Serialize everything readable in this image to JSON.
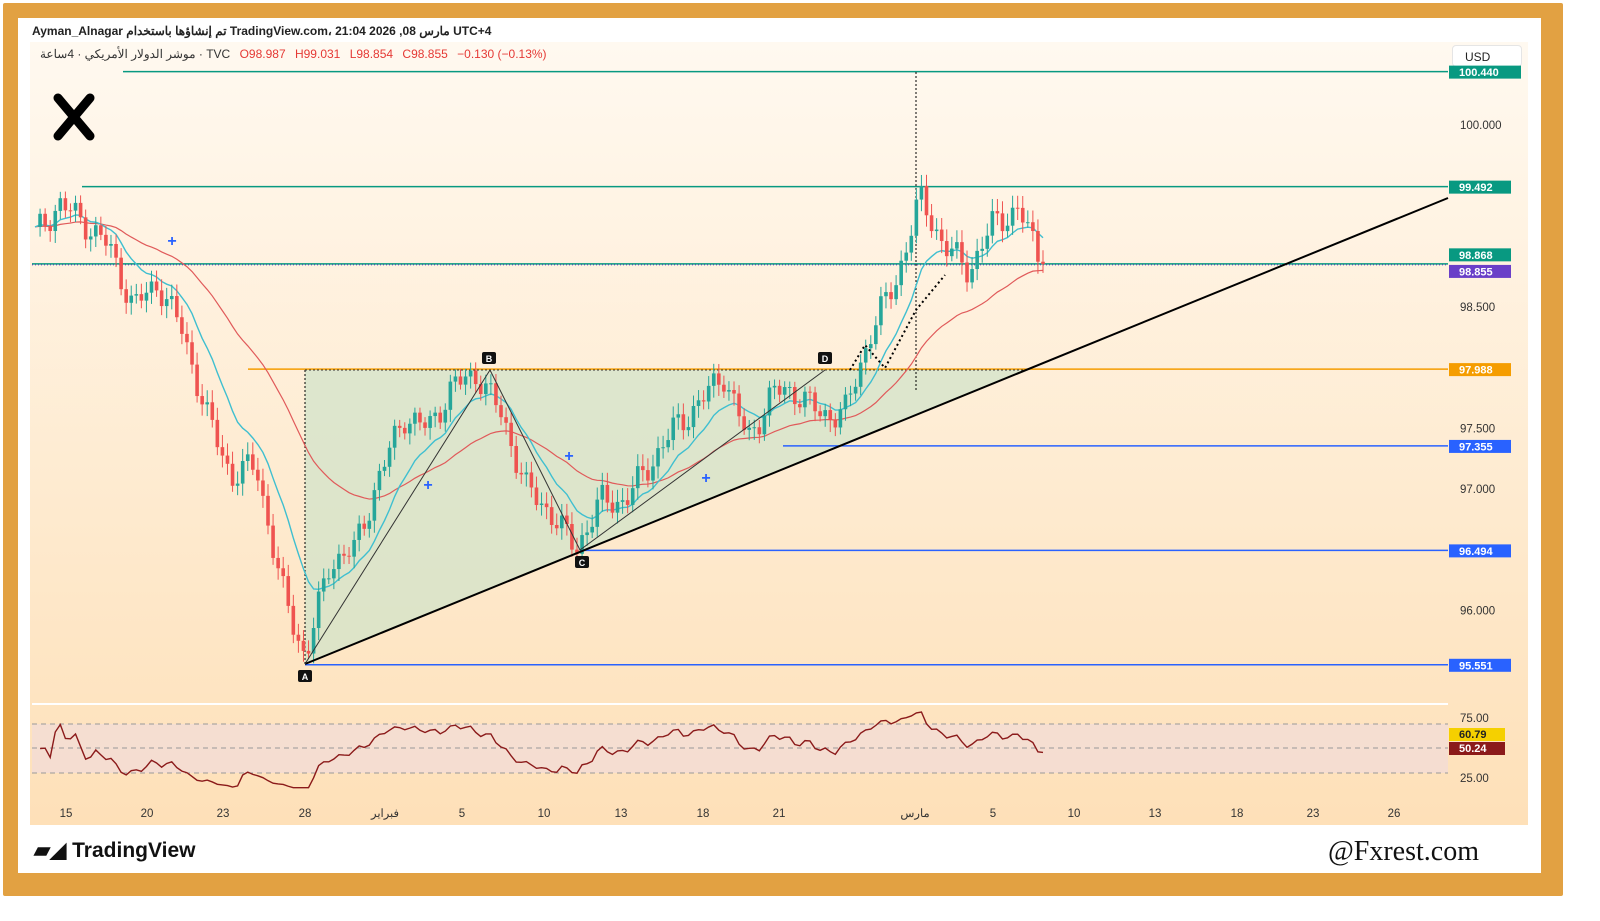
{
  "header": {
    "line1": "Ayman_Alnagar تم إنشاؤها باستخدام TradingView.com، 21:04 2026 ,08 مارس UTC+4",
    "symbol": "موشر الدولار الأمريكي · 4ساعة · TVC",
    "open": "O98.987",
    "high": "H99.031",
    "low": "L98.854",
    "close": "C98.855",
    "change": "−0.130 (−0.13%)"
  },
  "currency": "USD",
  "brand": {
    "logo_text": "TradingView",
    "watermark": "@Fxrest.com"
  },
  "colors": {
    "frame": "#e2a142",
    "up": "#26a69a",
    "down": "#ef5350",
    "ema": "#3fbfd0",
    "ma": "#e05a5a",
    "trend": "#000000",
    "teal": "#089981",
    "blue": "#2962ff",
    "orange": "#f59d00",
    "rsi": "#8b1a1a"
  },
  "chart_data": {
    "type": "candlestick",
    "title": "",
    "date_range": [
      "2026-01-14",
      "2026-03-06"
    ],
    "approx_closes": [
      99.1,
      99.35,
      99.2,
      99.0,
      98.5,
      98.7,
      98.3,
      97.6,
      97.1,
      97.2,
      96.2,
      95.6,
      96.4,
      96.5,
      97.1,
      97.6,
      97.5,
      97.85,
      97.95,
      97.6,
      97.0,
      96.8,
      96.5,
      96.9,
      96.9,
      97.2,
      97.5,
      97.7,
      97.95,
      97.4,
      97.8,
      97.8,
      97.6,
      97.65,
      98.3,
      98.7,
      99.4,
      99.0,
      98.8,
      99.2,
      99.3,
      98.855
    ],
    "y_ticks": [
      "100.000",
      "98.500",
      "97.500",
      "97.000",
      "96.000"
    ],
    "x_ticks": [
      "15",
      "20",
      "23",
      "28",
      "فبراير",
      "5",
      "10",
      "13",
      "18",
      "21",
      "مارس",
      "5",
      "10",
      "13",
      "18",
      "23",
      "26"
    ],
    "levels": [
      {
        "label": "100.440",
        "value": 100.44,
        "color": "#089981"
      },
      {
        "label": "99.492",
        "value": 99.492,
        "color": "#089981"
      },
      {
        "label": "98.868",
        "value": 98.868,
        "color": "#089981"
      },
      {
        "label": "98.855",
        "value": 98.855,
        "color": "#6a3fc8"
      },
      {
        "label": "97.988",
        "value": 97.988,
        "color": "#f59d00"
      },
      {
        "label": "97.355",
        "value": 97.355,
        "color": "#2962ff"
      },
      {
        "label": "96.494",
        "value": 96.494,
        "color": "#2962ff"
      },
      {
        "label": "95.551",
        "value": 95.551,
        "color": "#2962ff"
      }
    ],
    "pattern_points": [
      {
        "label": "A",
        "value": 95.551
      },
      {
        "label": "B",
        "value": 97.988
      },
      {
        "label": "C",
        "value": 96.494
      },
      {
        "label": "D",
        "value": 97.988
      }
    ],
    "rsi": {
      "ticks": [
        "75.00",
        "25.00"
      ],
      "last_values": [
        {
          "label": "60.79",
          "color": "#f5d000"
        },
        {
          "label": "50.24",
          "color": "#8b1a1a"
        }
      ]
    }
  }
}
